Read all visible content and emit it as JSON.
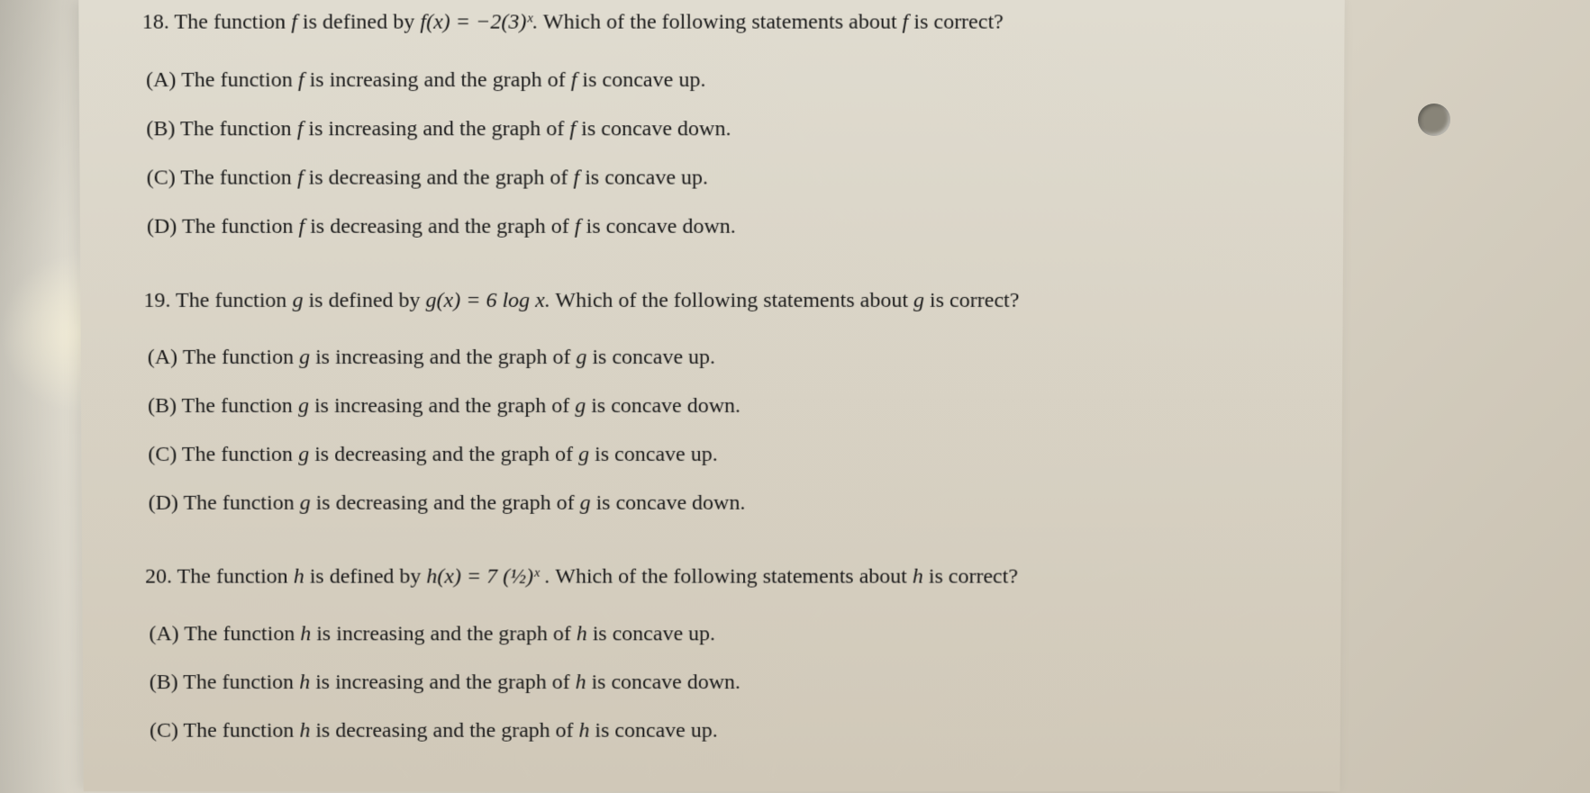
{
  "questions": [
    {
      "number": "18.",
      "prompt_pre": "The function ",
      "prompt_f1": "f",
      "prompt_mid1": " is defined by ",
      "prompt_formula": "f(x) = −2(3)ˣ.",
      "prompt_mid2": "  Which of the following statements about ",
      "prompt_f2": "f",
      "prompt_post": " is correct?",
      "choices": [
        {
          "label": "(A)",
          "pre": "The function ",
          "f1": "f",
          "mid": " is increasing and the graph of ",
          "f2": "f",
          "post": " is concave up."
        },
        {
          "label": "(B)",
          "pre": "The function ",
          "f1": "f",
          "mid": " is increasing and the graph of ",
          "f2": "f",
          "post": " is concave down."
        },
        {
          "label": "(C)",
          "pre": "The function ",
          "f1": "f",
          "mid": " is decreasing and the graph of ",
          "f2": "f",
          "post": " is concave up."
        },
        {
          "label": "(D)",
          "pre": "The function ",
          "f1": "f",
          "mid": " is decreasing and the graph of ",
          "f2": "f",
          "post": " is concave down."
        }
      ]
    },
    {
      "number": "19.",
      "prompt_pre": "The function ",
      "prompt_f1": "g",
      "prompt_mid1": " is defined by ",
      "prompt_formula": "g(x) = 6 log x.",
      "prompt_mid2": "  Which of the following statements about ",
      "prompt_f2": "g",
      "prompt_post": " is correct?",
      "choices": [
        {
          "label": "(A)",
          "pre": "The function ",
          "f1": "g",
          "mid": " is increasing and the graph of ",
          "f2": "g",
          "post": " is concave up."
        },
        {
          "label": "(B)",
          "pre": "The function ",
          "f1": "g",
          "mid": " is increasing and the graph of ",
          "f2": "g",
          "post": " is concave down."
        },
        {
          "label": "(C)",
          "pre": "The function ",
          "f1": "g",
          "mid": " is decreasing and the graph of ",
          "f2": "g",
          "post": " is concave up."
        },
        {
          "label": "(D)",
          "pre": "The function ",
          "f1": "g",
          "mid": " is decreasing and the graph of ",
          "f2": "g",
          "post": " is concave down."
        }
      ]
    },
    {
      "number": "20.",
      "prompt_pre": "The function ",
      "prompt_f1": "h",
      "prompt_mid1": " is defined by ",
      "prompt_formula": "h(x) = 7 (½)ˣ .",
      "prompt_mid2": "  Which of the following statements about ",
      "prompt_f2": "h",
      "prompt_post": " is correct?",
      "choices": [
        {
          "label": "(A)",
          "pre": "The function ",
          "f1": "h",
          "mid": " is increasing and the graph of ",
          "f2": "h",
          "post": " is concave up."
        },
        {
          "label": "(B)",
          "pre": "The function ",
          "f1": "h",
          "mid": " is increasing and the graph of ",
          "f2": "h",
          "post": " is concave down."
        },
        {
          "label": "(C)",
          "pre": "The function ",
          "f1": "h",
          "mid": " is decreasing and the graph of ",
          "f2": "h",
          "post": " is concave up."
        }
      ]
    }
  ]
}
